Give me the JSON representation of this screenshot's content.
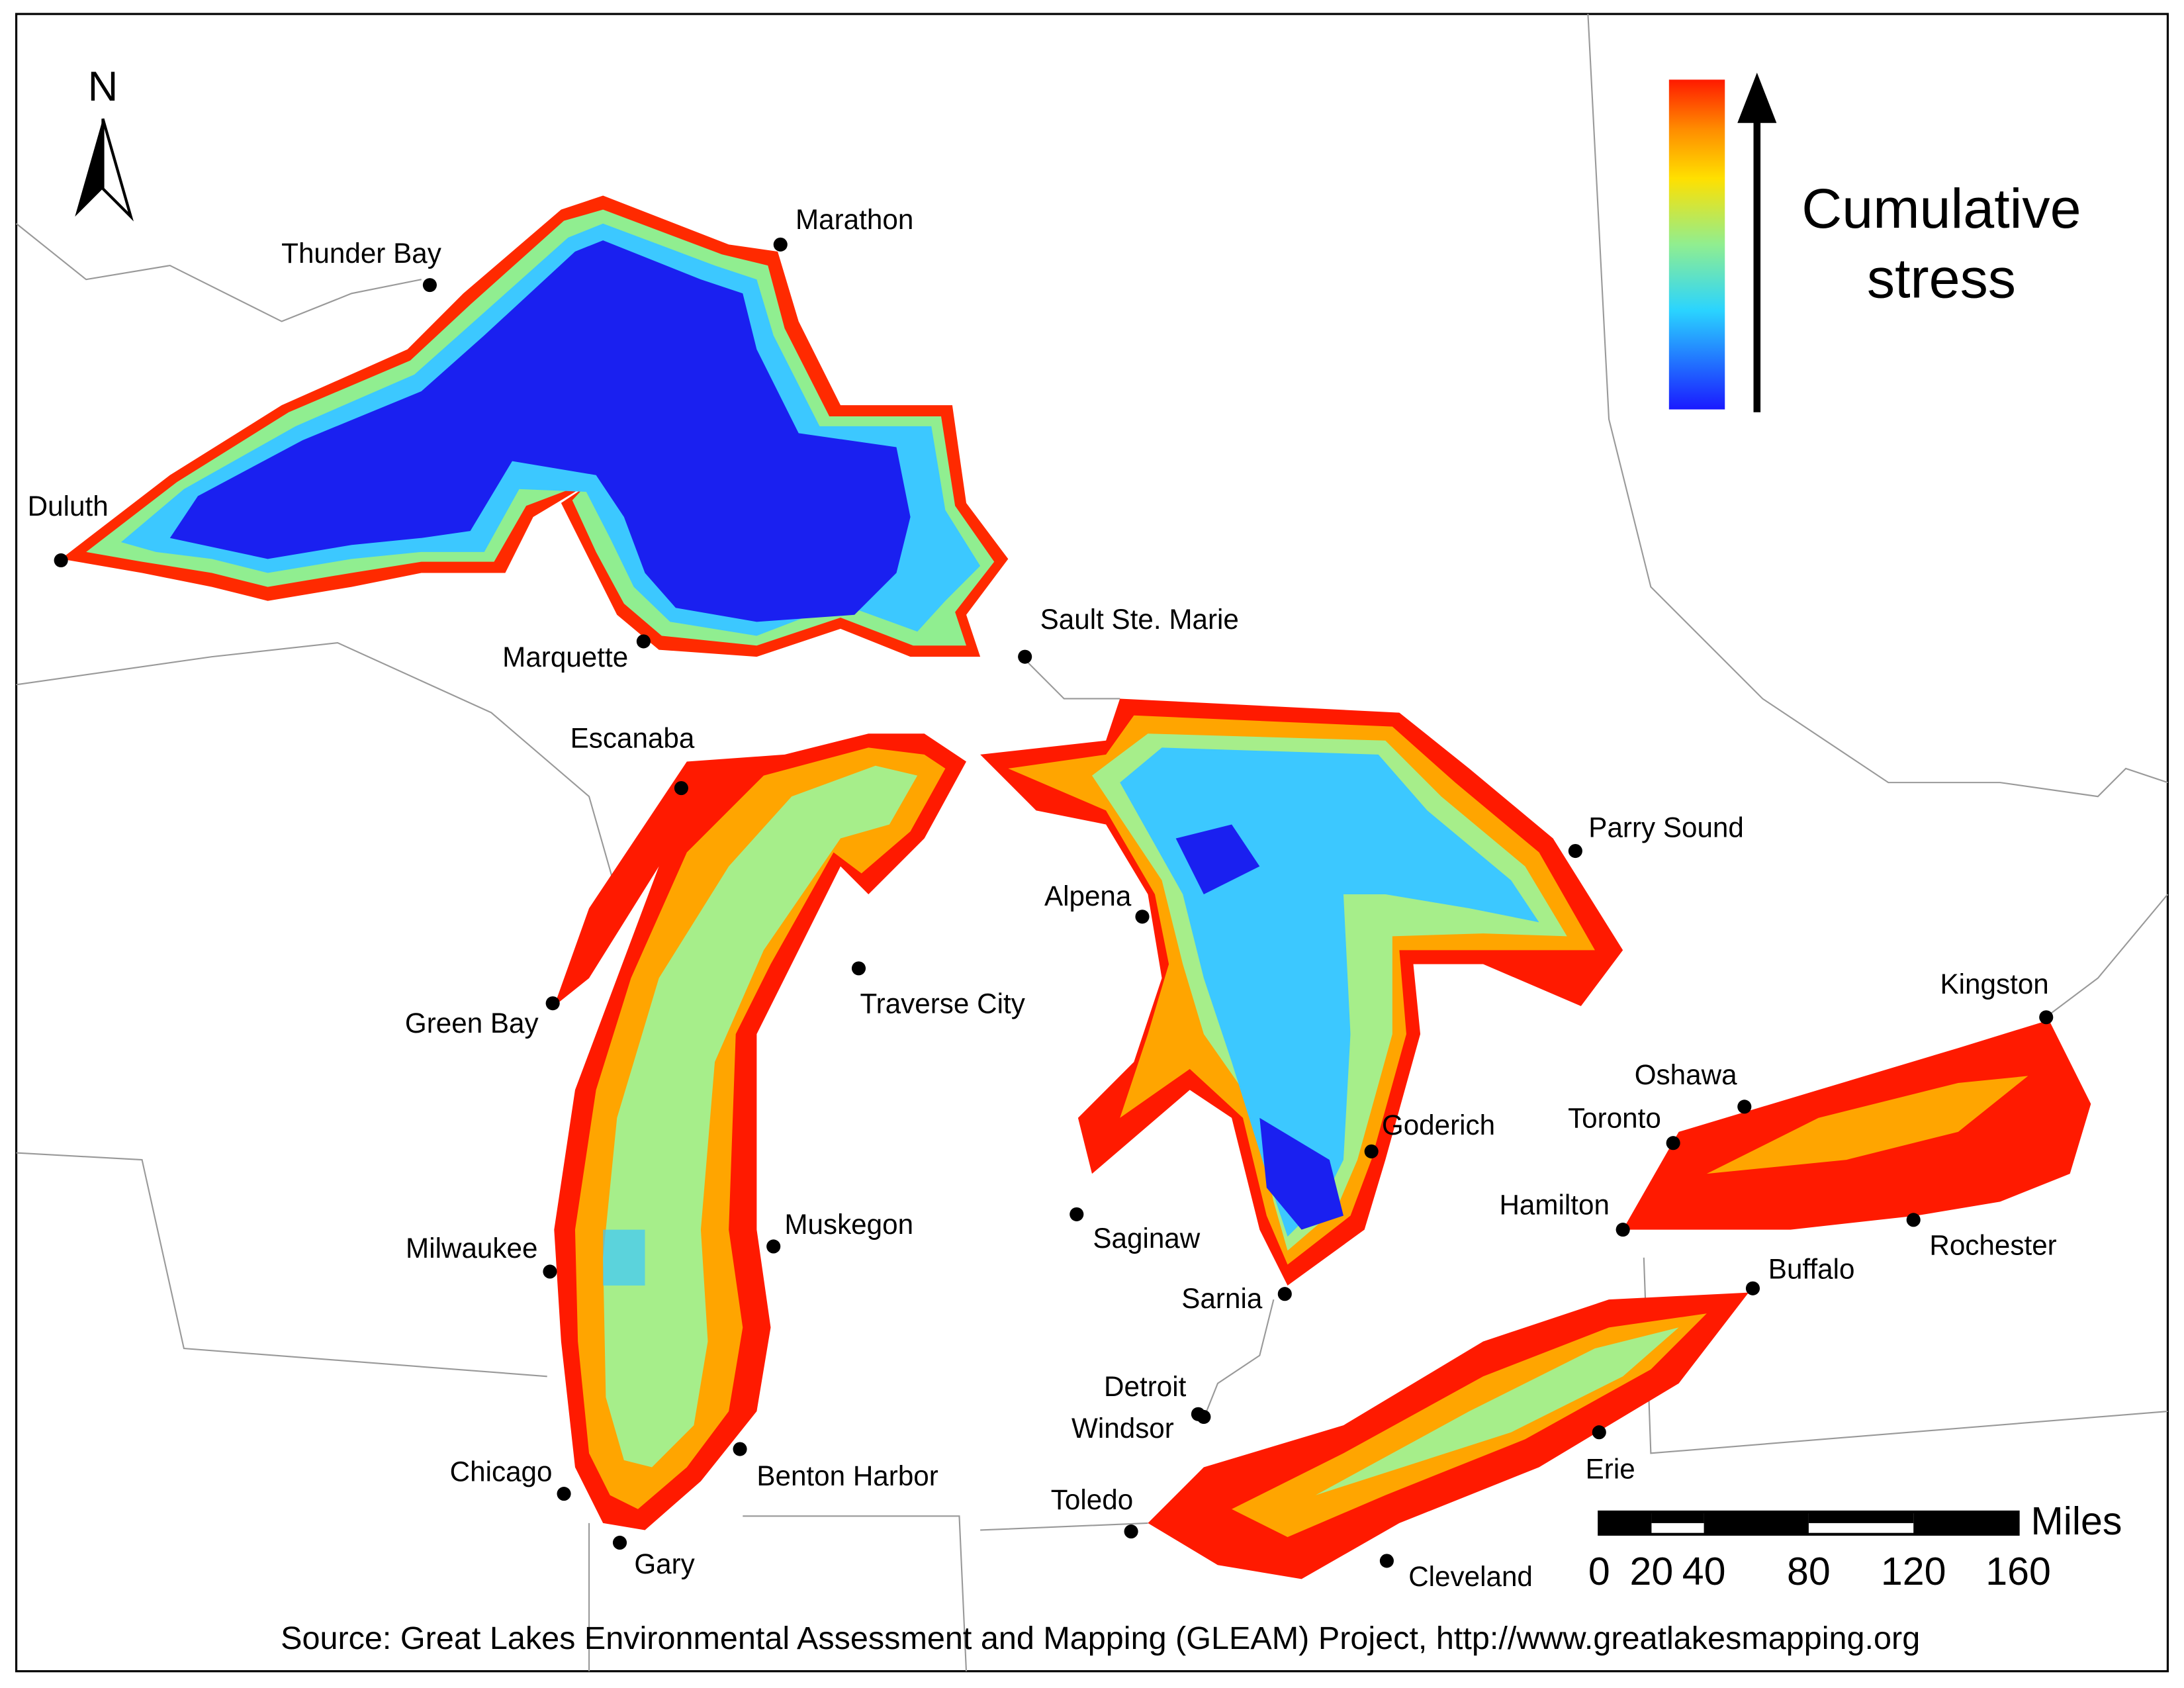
{
  "north": "N",
  "legend": {
    "title_lines": [
      "Cumulative",
      "stress"
    ]
  },
  "cities": [
    "Thunder Bay",
    "Marathon",
    "Duluth",
    "Marquette",
    "Sault Ste. Marie",
    "Escanaba",
    "Green Bay",
    "Traverse City",
    "Alpena",
    "Parry Sound",
    "Kingston",
    "Oshawa",
    "Toronto",
    "Goderich",
    "Hamilton",
    "Rochester",
    "Milwaukee",
    "Muskegon",
    "Saginaw",
    "Sarnia",
    "Buffalo",
    "Detroit",
    "Windsor",
    "Erie",
    "Chicago",
    "Benton Harbor",
    "Toledo",
    "Gary",
    "Cleveland"
  ],
  "scale_bar": {
    "ticks": [
      0,
      20,
      40,
      80,
      120,
      160
    ],
    "unit": "Miles"
  },
  "source": "Source: Great Lakes Environmental Assessment and Mapping (GLEAM) Project, http://www.greatlakesmapping.org"
}
